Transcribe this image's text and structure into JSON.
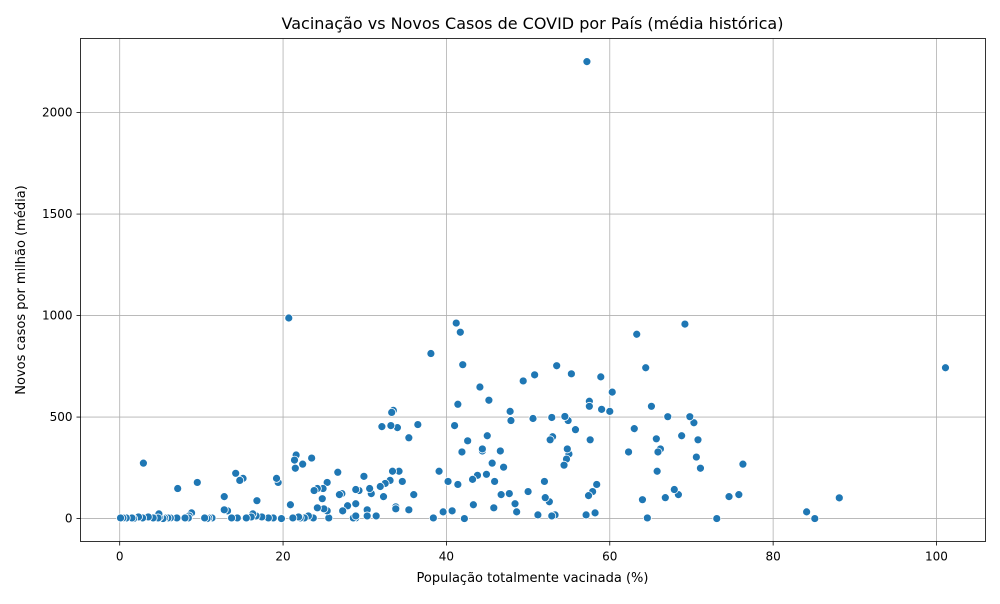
{
  "chart_data": {
    "type": "scatter",
    "title": "Vacinação vs Novos Casos de COVID por País (média histórica)",
    "xlabel": "População totalmente vacinada (%)",
    "ylabel": "Novos casos por milhão (média)",
    "xlim": [
      -4.8,
      106
    ],
    "ylim": [
      -113,
      2365
    ],
    "xticks": [
      0,
      20,
      40,
      60,
      80,
      100
    ],
    "yticks": [
      0,
      500,
      1000,
      1500,
      2000
    ],
    "grid": true,
    "marker_color": "#1f77b4",
    "points": [
      [
        57.2,
        2251
      ],
      [
        101.1,
        743
      ],
      [
        88.1,
        102
      ],
      [
        85.1,
        0
      ],
      [
        84.1,
        33
      ],
      [
        76.3,
        268
      ],
      [
        75.8,
        118
      ],
      [
        74.6,
        108
      ],
      [
        73.1,
        0
      ],
      [
        71.1,
        248
      ],
      [
        70.8,
        388
      ],
      [
        70.6,
        303
      ],
      [
        70.3,
        472
      ],
      [
        69.8,
        502
      ],
      [
        69.2,
        958
      ],
      [
        68.8,
        408
      ],
      [
        68.4,
        118
      ],
      [
        67.9,
        143
      ],
      [
        67.1,
        502
      ],
      [
        66.8,
        103
      ],
      [
        66.2,
        343
      ],
      [
        65.9,
        328
      ],
      [
        65.8,
        233
      ],
      [
        65.7,
        393
      ],
      [
        65.1,
        553
      ],
      [
        64.6,
        3
      ],
      [
        64.4,
        743
      ],
      [
        64.0,
        93
      ],
      [
        63.3,
        908
      ],
      [
        63.0,
        443
      ],
      [
        62.3,
        328
      ],
      [
        60.3,
        623
      ],
      [
        60.0,
        528
      ],
      [
        59.0,
        538
      ],
      [
        58.9,
        698
      ],
      [
        58.4,
        168
      ],
      [
        58.2,
        28
      ],
      [
        57.9,
        133
      ],
      [
        57.6,
        388
      ],
      [
        57.5,
        578
      ],
      [
        57.5,
        553
      ],
      [
        57.4,
        113
      ],
      [
        57.1,
        18
      ],
      [
        55.8,
        438
      ],
      [
        55.3,
        713
      ],
      [
        55.0,
        318
      ],
      [
        54.9,
        483
      ],
      [
        54.8,
        343
      ],
      [
        54.7,
        293
      ],
      [
        54.5,
        503
      ],
      [
        54.4,
        263
      ],
      [
        53.5,
        753
      ],
      [
        53.3,
        18
      ],
      [
        53.0,
        403
      ],
      [
        52.9,
        498
      ],
      [
        52.9,
        13
      ],
      [
        52.7,
        388
      ],
      [
        52.6,
        83
      ],
      [
        52.1,
        103
      ],
      [
        52.0,
        183
      ],
      [
        51.2,
        18
      ],
      [
        50.8,
        708
      ],
      [
        50.6,
        493
      ],
      [
        50.0,
        133
      ],
      [
        49.4,
        678
      ],
      [
        48.6,
        33
      ],
      [
        48.4,
        73
      ],
      [
        47.9,
        483
      ],
      [
        47.8,
        528
      ],
      [
        47.7,
        123
      ],
      [
        47.0,
        253
      ],
      [
        46.7,
        118
      ],
      [
        46.6,
        333
      ],
      [
        45.9,
        183
      ],
      [
        45.8,
        53
      ],
      [
        45.6,
        273
      ],
      [
        45.2,
        583
      ],
      [
        45.0,
        408
      ],
      [
        44.9,
        218
      ],
      [
        44.4,
        333
      ],
      [
        44.4,
        343
      ],
      [
        44.1,
        648
      ],
      [
        43.8,
        213
      ],
      [
        43.3,
        68
      ],
      [
        43.2,
        193
      ],
      [
        42.6,
        383
      ],
      [
        42.2,
        0
      ],
      [
        42.0,
        758
      ],
      [
        41.9,
        328
      ],
      [
        41.7,
        918
      ],
      [
        41.4,
        563
      ],
      [
        41.4,
        168
      ],
      [
        41.2,
        963
      ],
      [
        41.0,
        458
      ],
      [
        40.7,
        38
      ],
      [
        40.2,
        183
      ],
      [
        39.6,
        33
      ],
      [
        39.1,
        233
      ],
      [
        38.4,
        3
      ],
      [
        38.1,
        813
      ],
      [
        36.5,
        463
      ],
      [
        36.0,
        118
      ],
      [
        35.4,
        398
      ],
      [
        35.4,
        43
      ],
      [
        34.6,
        183
      ],
      [
        34.2,
        233
      ],
      [
        34.0,
        448
      ],
      [
        33.8,
        58
      ],
      [
        33.8,
        48
      ],
      [
        33.5,
        533
      ],
      [
        33.4,
        233
      ],
      [
        33.3,
        523
      ],
      [
        33.2,
        458
      ],
      [
        33.1,
        188
      ],
      [
        32.5,
        173
      ],
      [
        32.3,
        108
      ],
      [
        31.9,
        158
      ],
      [
        32.1,
        453
      ],
      [
        31.4,
        13
      ],
      [
        30.8,
        123
      ],
      [
        30.6,
        148
      ],
      [
        30.3,
        43
      ],
      [
        30.3,
        13
      ],
      [
        29.9,
        208
      ],
      [
        29.3,
        138
      ],
      [
        28.9,
        73
      ],
      [
        28.9,
        143
      ],
      [
        28.9,
        3
      ],
      [
        28.6,
        3
      ],
      [
        28.9,
        13
      ],
      [
        27.9,
        63
      ],
      [
        27.3,
        38
      ],
      [
        27.2,
        123
      ],
      [
        26.9,
        118
      ],
      [
        26.7,
        228
      ],
      [
        25.6,
        3
      ],
      [
        25.4,
        38
      ],
      [
        25.4,
        178
      ],
      [
        25.0,
        48
      ],
      [
        24.8,
        98
      ],
      [
        24.9,
        148
      ],
      [
        24.2,
        148
      ],
      [
        24.2,
        53
      ],
      [
        23.8,
        138
      ],
      [
        23.7,
        3
      ],
      [
        23.5,
        298
      ],
      [
        23.1,
        13
      ],
      [
        22.6,
        3
      ],
      [
        22.4,
        268
      ],
      [
        22.1,
        3
      ],
      [
        21.9,
        8
      ],
      [
        21.6,
        313
      ],
      [
        21.5,
        248
      ],
      [
        21.4,
        288
      ],
      [
        21.2,
        3
      ],
      [
        20.9,
        68
      ],
      [
        20.7,
        988
      ],
      [
        19.8,
        0
      ],
      [
        19.4,
        178
      ],
      [
        19.2,
        198
      ],
      [
        18.8,
        3
      ],
      [
        18.2,
        3
      ],
      [
        17.4,
        8
      ],
      [
        16.8,
        88
      ],
      [
        16.7,
        13
      ],
      [
        16.3,
        23
      ],
      [
        16.1,
        8
      ],
      [
        15.5,
        3
      ],
      [
        15.1,
        198
      ],
      [
        14.7,
        188
      ],
      [
        14.4,
        3
      ],
      [
        14.2,
        223
      ],
      [
        13.7,
        3
      ],
      [
        13.2,
        38
      ],
      [
        12.8,
        108
      ],
      [
        12.8,
        43
      ],
      [
        11.3,
        3
      ],
      [
        10.9,
        3
      ],
      [
        10.7,
        0
      ],
      [
        10.4,
        3
      ],
      [
        9.5,
        178
      ],
      [
        8.8,
        28
      ],
      [
        8.5,
        13
      ],
      [
        8.4,
        3
      ],
      [
        8.0,
        3
      ],
      [
        7.1,
        148
      ],
      [
        7.0,
        3
      ],
      [
        6.2,
        3
      ],
      [
        5.9,
        3
      ],
      [
        5.5,
        3
      ],
      [
        5.3,
        0
      ],
      [
        4.9,
        8
      ],
      [
        4.8,
        23
      ],
      [
        4.7,
        3
      ],
      [
        4.1,
        3
      ],
      [
        3.5,
        8
      ],
      [
        2.9,
        273
      ],
      [
        2.8,
        3
      ],
      [
        2.3,
        8
      ],
      [
        1.7,
        0
      ],
      [
        1.5,
        3
      ],
      [
        0.8,
        3
      ],
      [
        0.4,
        3
      ],
      [
        0.1,
        3
      ]
    ]
  }
}
